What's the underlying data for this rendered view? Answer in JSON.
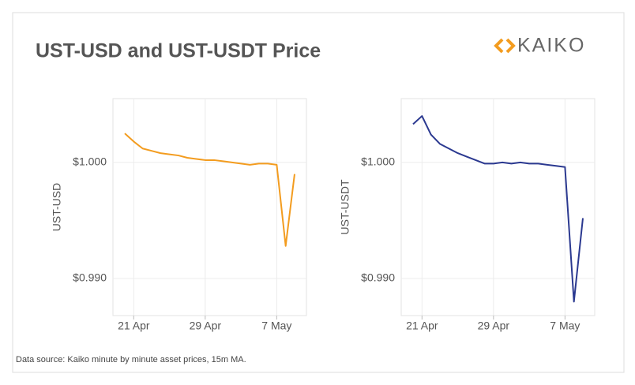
{
  "title": "UST-USD and UST-USDT Price",
  "logo": "KAIKO",
  "source": "Data source: Kaiko minute by minute  asset prices, 15m MA.",
  "chart_data": [
    {
      "type": "line",
      "y_label": "UST-USD",
      "x": [
        "20 Apr",
        "21 Apr",
        "22 Apr",
        "23 Apr",
        "24 Apr",
        "25 Apr",
        "26 Apr",
        "27 Apr",
        "28 Apr",
        "29 Apr",
        "30 Apr",
        "1 May",
        "2 May",
        "3 May",
        "4 May",
        "5 May",
        "6 May",
        "7 May",
        "8 May",
        "9 May"
      ],
      "series": [
        {
          "name": "UST-USD",
          "color": "#f39c1f",
          "values": [
            1.0025,
            1.0018,
            1.0012,
            1.001,
            1.0008,
            1.0007,
            1.0006,
            1.0004,
            1.0003,
            1.0002,
            1.0002,
            1.0001,
            1.0,
            0.9999,
            0.9998,
            0.9999,
            0.9999,
            0.9998,
            0.9928,
            0.999
          ]
        }
      ],
      "xticks": [
        "21 Apr",
        "29 Apr",
        "7 May"
      ],
      "ylim": [
        0.9868,
        1.0055
      ],
      "yticks": [
        {
          "value": 0.99,
          "label": "$0.990"
        },
        {
          "value": 1.0,
          "label": "$1.000"
        }
      ],
      "grid": true
    },
    {
      "type": "line",
      "y_label": "UST-USDT",
      "x": [
        "20 Apr",
        "21 Apr",
        "22 Apr",
        "23 Apr",
        "24 Apr",
        "25 Apr",
        "26 Apr",
        "27 Apr",
        "28 Apr",
        "29 Apr",
        "30 Apr",
        "1 May",
        "2 May",
        "3 May",
        "4 May",
        "5 May",
        "6 May",
        "7 May",
        "8 May",
        "9 May"
      ],
      "series": [
        {
          "name": "UST-USDT",
          "color": "#2b3990",
          "values": [
            1.0033,
            1.004,
            1.0024,
            1.0016,
            1.0012,
            1.0008,
            1.0005,
            1.0002,
            0.9999,
            0.9999,
            1.0,
            0.9999,
            1.0,
            0.9999,
            0.9999,
            0.9998,
            0.9997,
            0.9996,
            0.988,
            0.9952
          ]
        }
      ],
      "xticks": [
        "21 Apr",
        "29 Apr",
        "7 May"
      ],
      "ylim": [
        0.9868,
        1.0055
      ],
      "yticks": [
        {
          "value": 0.99,
          "label": "$0.990"
        },
        {
          "value": 1.0,
          "label": "$1.000"
        }
      ],
      "grid": true
    }
  ]
}
